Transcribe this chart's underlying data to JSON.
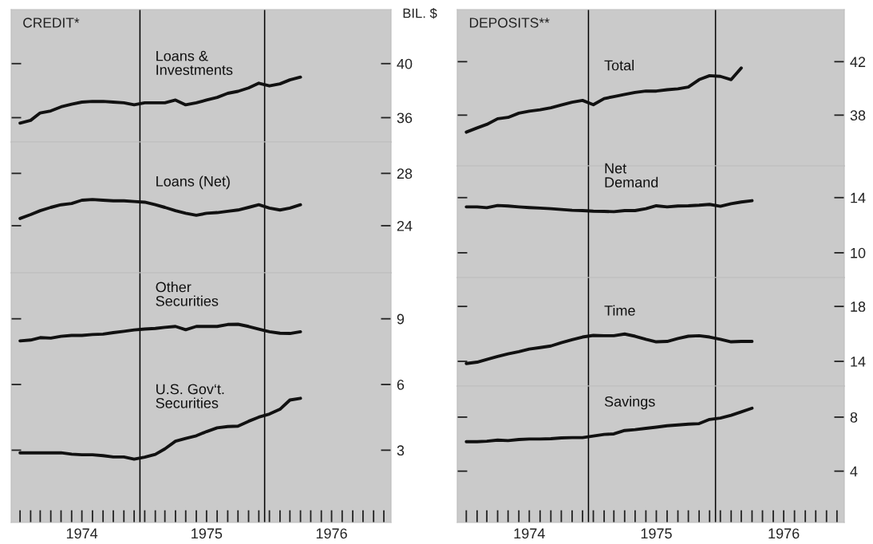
{
  "chart_data": [
    {
      "type": "line",
      "title": "CREDIT*",
      "ylabel": "BIL. $",
      "tick_labels": "y",
      "xlim": [
        "1973-12-20",
        "1977-01-05"
      ],
      "ylim": [
        34.2,
        44.0
      ],
      "yticks": [
        36,
        40
      ],
      "x": [
        "1974-01-15",
        "1974-02-15",
        "1974-03-15",
        "1974-04-15",
        "1974-05-15",
        "1974-06-15",
        "1974-07-15",
        "1974-08-15",
        "1974-09-15",
        "1974-10-15",
        "1974-11-15",
        "1974-12-15",
        "1975-01-15",
        "1975-02-15",
        "1975-03-15",
        "1975-04-15",
        "1975-05-15",
        "1975-06-15",
        "1975-07-15",
        "1975-08-15",
        "1975-09-15",
        "1975-10-15",
        "1975-11-15",
        "1975-12-15",
        "1976-01-15",
        "1976-02-15",
        "1976-03-15",
        "1976-04-15"
      ],
      "ref_lines": [
        {
          "axis": "x",
          "value": "1975-01-01",
          "color": "#000000"
        },
        {
          "axis": "x",
          "value": "1976-01-01",
          "color": "#000000"
        }
      ],
      "series": [
        {
          "name": "Loans &\nInvestments",
          "color": "#111111",
          "values": [
            35.6,
            35.8,
            36.35,
            36.5,
            36.8,
            37.0,
            37.15,
            37.2,
            37.2,
            37.15,
            37.1,
            36.95,
            37.1,
            37.1,
            37.1,
            37.3,
            36.95,
            37.1,
            37.3,
            37.5,
            37.8,
            37.95,
            38.2,
            38.55,
            38.35,
            38.5,
            38.8,
            39.0
          ]
        }
      ]
    },
    {
      "type": "line",
      "tick_labels": "y",
      "xlim": [
        "1973-12-20",
        "1977-01-05"
      ],
      "ylim": [
        20.4,
        30.4
      ],
      "yticks": [
        24,
        28
      ],
      "x": [
        "1974-01-15",
        "1974-02-15",
        "1974-03-15",
        "1974-04-15",
        "1974-05-15",
        "1974-06-15",
        "1974-07-15",
        "1974-08-15",
        "1974-09-15",
        "1974-10-15",
        "1974-11-15",
        "1974-12-15",
        "1975-01-15",
        "1975-02-15",
        "1975-03-15",
        "1975-04-15",
        "1975-05-15",
        "1975-06-15",
        "1975-07-15",
        "1975-08-15",
        "1975-09-15",
        "1975-10-15",
        "1975-11-15",
        "1975-12-15",
        "1976-01-15",
        "1976-02-15",
        "1976-03-15",
        "1976-04-15"
      ],
      "ref_lines": [
        {
          "axis": "x",
          "value": "1975-01-01",
          "color": "#000000"
        },
        {
          "axis": "x",
          "value": "1976-01-01",
          "color": "#000000"
        }
      ],
      "series": [
        {
          "name": "Loans (Net)",
          "color": "#111111",
          "values": [
            24.55,
            24.85,
            25.15,
            25.4,
            25.6,
            25.7,
            25.95,
            26.0,
            25.95,
            25.9,
            25.9,
            25.85,
            25.8,
            25.6,
            25.4,
            25.15,
            24.95,
            24.8,
            24.95,
            25.0,
            25.1,
            25.2,
            25.4,
            25.6,
            25.35,
            25.2,
            25.35,
            25.6
          ]
        }
      ]
    },
    {
      "type": "line",
      "xlim": [
        "1973-12-20",
        "1977-01-05"
      ],
      "ylim": [
        -0.3,
        11.1
      ],
      "yticks": [
        3,
        6,
        9
      ],
      "xticks": [
        {
          "value": "1974-01-15",
          "label": null
        },
        {
          "value": "1974-02-15",
          "label": null
        },
        {
          "value": "1974-03-15",
          "label": null
        },
        {
          "value": "1974-04-15",
          "label": null
        },
        {
          "value": "1974-05-15",
          "label": null
        },
        {
          "value": "1974-06-15",
          "label": null
        },
        {
          "value": "1974-07-15",
          "label": "1974"
        },
        {
          "value": "1974-08-15",
          "label": null
        },
        {
          "value": "1974-09-15",
          "label": null
        },
        {
          "value": "1974-10-15",
          "label": null
        },
        {
          "value": "1974-11-15",
          "label": null
        },
        {
          "value": "1974-12-15",
          "label": null
        },
        {
          "value": "1975-01-15",
          "label": null
        },
        {
          "value": "1975-02-15",
          "label": null
        },
        {
          "value": "1975-03-15",
          "label": null
        },
        {
          "value": "1975-04-15",
          "label": null
        },
        {
          "value": "1975-05-15",
          "label": null
        },
        {
          "value": "1975-06-15",
          "label": null
        },
        {
          "value": "1975-07-15",
          "label": "1975"
        },
        {
          "value": "1975-08-15",
          "label": null
        },
        {
          "value": "1975-09-15",
          "label": null
        },
        {
          "value": "1975-10-15",
          "label": null
        },
        {
          "value": "1975-11-15",
          "label": null
        },
        {
          "value": "1975-12-15",
          "label": null
        },
        {
          "value": "1976-01-15",
          "label": null
        },
        {
          "value": "1976-02-15",
          "label": null
        },
        {
          "value": "1976-03-15",
          "label": null
        },
        {
          "value": "1976-04-15",
          "label": null
        },
        {
          "value": "1976-05-15",
          "label": null
        },
        {
          "value": "1976-06-15",
          "label": null
        },
        {
          "value": "1976-07-15",
          "label": "1976"
        },
        {
          "value": "1976-08-15",
          "label": null
        },
        {
          "value": "1976-09-15",
          "label": null
        },
        {
          "value": "1976-10-15",
          "label": null
        },
        {
          "value": "1976-11-15",
          "label": null
        },
        {
          "value": "1976-12-15",
          "label": null
        }
      ],
      "x": [
        "1974-01-15",
        "1974-02-15",
        "1974-03-15",
        "1974-04-15",
        "1974-05-15",
        "1974-06-15",
        "1974-07-15",
        "1974-08-15",
        "1974-09-15",
        "1974-10-15",
        "1974-11-15",
        "1974-12-15",
        "1975-01-15",
        "1975-02-15",
        "1975-03-15",
        "1975-04-15",
        "1975-05-15",
        "1975-06-15",
        "1975-07-15",
        "1975-08-15",
        "1975-09-15",
        "1975-10-15",
        "1975-11-15",
        "1975-12-15",
        "1976-01-15",
        "1976-02-15",
        "1976-03-15",
        "1976-04-15"
      ],
      "ref_lines": [
        {
          "axis": "x",
          "value": "1975-01-01",
          "color": "#000000"
        },
        {
          "axis": "x",
          "value": "1976-01-01",
          "color": "#000000"
        }
      ],
      "series": [
        {
          "name": "Other\nSecurities",
          "color": "#111111",
          "values": [
            7.99,
            8.03,
            8.14,
            8.12,
            8.2,
            8.24,
            8.24,
            8.28,
            8.3,
            8.37,
            8.43,
            8.49,
            8.53,
            8.56,
            8.61,
            8.65,
            8.5,
            8.65,
            8.65,
            8.65,
            8.74,
            8.75,
            8.65,
            8.53,
            8.41,
            8.34,
            8.33,
            8.41
          ]
        },
        {
          "name": "U.S. Gov‘t.\nSecurities",
          "color": "#111111",
          "values": [
            2.88,
            2.88,
            2.88,
            2.88,
            2.88,
            2.82,
            2.79,
            2.79,
            2.75,
            2.69,
            2.69,
            2.59,
            2.68,
            2.81,
            3.06,
            3.41,
            3.54,
            3.66,
            3.85,
            4.02,
            4.08,
            4.1,
            4.32,
            4.51,
            4.65,
            4.87,
            5.29,
            5.37
          ]
        }
      ]
    },
    {
      "type": "line",
      "title": "DEPOSITS**",
      "tick_labels": "y",
      "xlim": [
        "1973-12-20",
        "1977-01-05"
      ],
      "ylim": [
        34.2,
        45.9
      ],
      "yticks": [
        38,
        42
      ],
      "x": [
        "1974-01-15",
        "1974-02-15",
        "1974-03-15",
        "1974-04-15",
        "1974-05-15",
        "1974-06-15",
        "1974-07-15",
        "1974-08-15",
        "1974-09-15",
        "1974-10-15",
        "1974-11-15",
        "1974-12-15",
        "1975-01-15",
        "1975-02-15",
        "1975-03-15",
        "1975-04-15",
        "1975-05-15",
        "1975-06-15",
        "1975-07-15",
        "1975-08-15",
        "1975-09-15",
        "1975-10-15",
        "1975-11-15",
        "1975-12-15",
        "1976-01-15",
        "1976-02-15",
        "1976-03-15"
      ],
      "ref_lines": [
        {
          "axis": "x",
          "value": "1975-01-01",
          "color": "#000000"
        },
        {
          "axis": "x",
          "value": "1976-01-01",
          "color": "#000000"
        }
      ],
      "series": [
        {
          "name": "Total",
          "color": "#111111",
          "values": [
            36.73,
            37.04,
            37.31,
            37.73,
            37.83,
            38.15,
            38.3,
            38.4,
            38.55,
            38.76,
            38.97,
            39.1,
            38.78,
            39.24,
            39.39,
            39.55,
            39.7,
            39.8,
            39.8,
            39.9,
            39.97,
            40.1,
            40.66,
            40.95,
            40.9,
            40.66,
            41.53
          ]
        }
      ]
    },
    {
      "type": "line",
      "tick_labels": "y",
      "xlim": [
        "1973-12-20",
        "1977-01-05"
      ],
      "ylim": [
        8.2,
        16.3
      ],
      "yticks": [
        10,
        14
      ],
      "x": [
        "1974-01-15",
        "1974-02-15",
        "1974-03-15",
        "1974-04-15",
        "1974-05-15",
        "1974-06-15",
        "1974-07-15",
        "1974-08-15",
        "1974-09-15",
        "1974-10-15",
        "1974-11-15",
        "1974-12-15",
        "1975-01-15",
        "1975-02-15",
        "1975-03-15",
        "1975-04-15",
        "1975-05-15",
        "1975-06-15",
        "1975-07-15",
        "1975-08-15",
        "1975-09-15",
        "1975-10-15",
        "1975-11-15",
        "1975-12-15",
        "1976-01-15",
        "1976-02-15",
        "1976-03-15",
        "1976-04-15"
      ],
      "ref_lines": [
        {
          "axis": "x",
          "value": "1975-01-01",
          "color": "#000000"
        },
        {
          "axis": "x",
          "value": "1976-01-01",
          "color": "#000000"
        }
      ],
      "series": [
        {
          "name": "Net\nDemand",
          "color": "#111111",
          "values": [
            13.33,
            13.33,
            13.27,
            13.43,
            13.39,
            13.33,
            13.28,
            13.24,
            13.2,
            13.14,
            13.08,
            13.06,
            13.02,
            13.0,
            12.98,
            13.06,
            13.06,
            13.2,
            13.41,
            13.33,
            13.39,
            13.41,
            13.45,
            13.51,
            13.37,
            13.56,
            13.68,
            13.78
          ]
        }
      ]
    },
    {
      "type": "line",
      "tick_labels": "y",
      "xlim": [
        "1973-12-20",
        "1977-01-05"
      ],
      "ylim": [
        12.2,
        20.1
      ],
      "yticks": [
        14,
        18
      ],
      "x": [
        "1974-01-15",
        "1974-02-15",
        "1974-03-15",
        "1974-04-15",
        "1974-05-15",
        "1974-06-15",
        "1974-07-15",
        "1974-08-15",
        "1974-09-15",
        "1974-10-15",
        "1974-11-15",
        "1974-12-15",
        "1975-01-15",
        "1975-02-15",
        "1975-03-15",
        "1975-04-15",
        "1975-05-15",
        "1975-06-15",
        "1975-07-15",
        "1975-08-15",
        "1975-09-15",
        "1975-10-15",
        "1975-11-15",
        "1975-12-15",
        "1976-01-15",
        "1976-02-15",
        "1976-03-15",
        "1976-04-15"
      ],
      "ref_lines": [
        {
          "axis": "x",
          "value": "1975-01-01",
          "color": "#000000"
        },
        {
          "axis": "x",
          "value": "1976-01-01",
          "color": "#000000"
        }
      ],
      "series": [
        {
          "name": "Time",
          "color": "#111111",
          "values": [
            13.84,
            13.94,
            14.14,
            14.35,
            14.55,
            14.71,
            14.89,
            15.0,
            15.12,
            15.36,
            15.57,
            15.77,
            15.89,
            15.87,
            15.87,
            15.99,
            15.83,
            15.61,
            15.42,
            15.45,
            15.66,
            15.83,
            15.87,
            15.77,
            15.61,
            15.42,
            15.45,
            15.45
          ]
        }
      ]
    },
    {
      "type": "line",
      "xlim": [
        "1973-12-20",
        "1977-01-05"
      ],
      "ylim": [
        0.2,
        10.3
      ],
      "yticks": [
        4,
        8
      ],
      "xticks": [
        {
          "value": "1974-01-15",
          "label": null
        },
        {
          "value": "1974-02-15",
          "label": null
        },
        {
          "value": "1974-03-15",
          "label": null
        },
        {
          "value": "1974-04-15",
          "label": null
        },
        {
          "value": "1974-05-15",
          "label": null
        },
        {
          "value": "1974-06-15",
          "label": null
        },
        {
          "value": "1974-07-15",
          "label": "1974"
        },
        {
          "value": "1974-08-15",
          "label": null
        },
        {
          "value": "1974-09-15",
          "label": null
        },
        {
          "value": "1974-10-15",
          "label": null
        },
        {
          "value": "1974-11-15",
          "label": null
        },
        {
          "value": "1974-12-15",
          "label": null
        },
        {
          "value": "1975-01-15",
          "label": null
        },
        {
          "value": "1975-02-15",
          "label": null
        },
        {
          "value": "1975-03-15",
          "label": null
        },
        {
          "value": "1975-04-15",
          "label": null
        },
        {
          "value": "1975-05-15",
          "label": null
        },
        {
          "value": "1975-06-15",
          "label": null
        },
        {
          "value": "1975-07-15",
          "label": "1975"
        },
        {
          "value": "1975-08-15",
          "label": null
        },
        {
          "value": "1975-09-15",
          "label": null
        },
        {
          "value": "1975-10-15",
          "label": null
        },
        {
          "value": "1975-11-15",
          "label": null
        },
        {
          "value": "1975-12-15",
          "label": null
        },
        {
          "value": "1976-01-15",
          "label": null
        },
        {
          "value": "1976-02-15",
          "label": null
        },
        {
          "value": "1976-03-15",
          "label": null
        },
        {
          "value": "1976-04-15",
          "label": null
        },
        {
          "value": "1976-05-15",
          "label": null
        },
        {
          "value": "1976-06-15",
          "label": null
        },
        {
          "value": "1976-07-15",
          "label": "1976"
        },
        {
          "value": "1976-08-15",
          "label": null
        },
        {
          "value": "1976-09-15",
          "label": null
        },
        {
          "value": "1976-10-15",
          "label": null
        },
        {
          "value": "1976-11-15",
          "label": null
        },
        {
          "value": "1976-12-15",
          "label": null
        }
      ],
      "x": [
        "1974-01-15",
        "1974-02-15",
        "1974-03-15",
        "1974-04-15",
        "1974-05-15",
        "1974-06-15",
        "1974-07-15",
        "1974-08-15",
        "1974-09-15",
        "1974-10-15",
        "1974-11-15",
        "1974-12-15",
        "1975-01-15",
        "1975-02-15",
        "1975-03-15",
        "1975-04-15",
        "1975-05-15",
        "1975-06-15",
        "1975-07-15",
        "1975-08-15",
        "1975-09-15",
        "1975-10-15",
        "1975-11-15",
        "1975-12-15",
        "1976-01-15",
        "1976-02-15",
        "1976-03-15",
        "1976-04-15"
      ],
      "ref_lines": [
        {
          "axis": "x",
          "value": "1975-01-01",
          "color": "#000000"
        },
        {
          "axis": "x",
          "value": "1976-01-01",
          "color": "#000000"
        }
      ],
      "series": [
        {
          "name": "Savings",
          "color": "#111111",
          "values": [
            6.18,
            6.18,
            6.22,
            6.3,
            6.26,
            6.34,
            6.38,
            6.38,
            6.4,
            6.46,
            6.48,
            6.48,
            6.6,
            6.72,
            6.76,
            7.01,
            7.07,
            7.17,
            7.26,
            7.36,
            7.42,
            7.48,
            7.52,
            7.83,
            7.93,
            8.14,
            8.39,
            8.66
          ]
        }
      ]
    }
  ]
}
